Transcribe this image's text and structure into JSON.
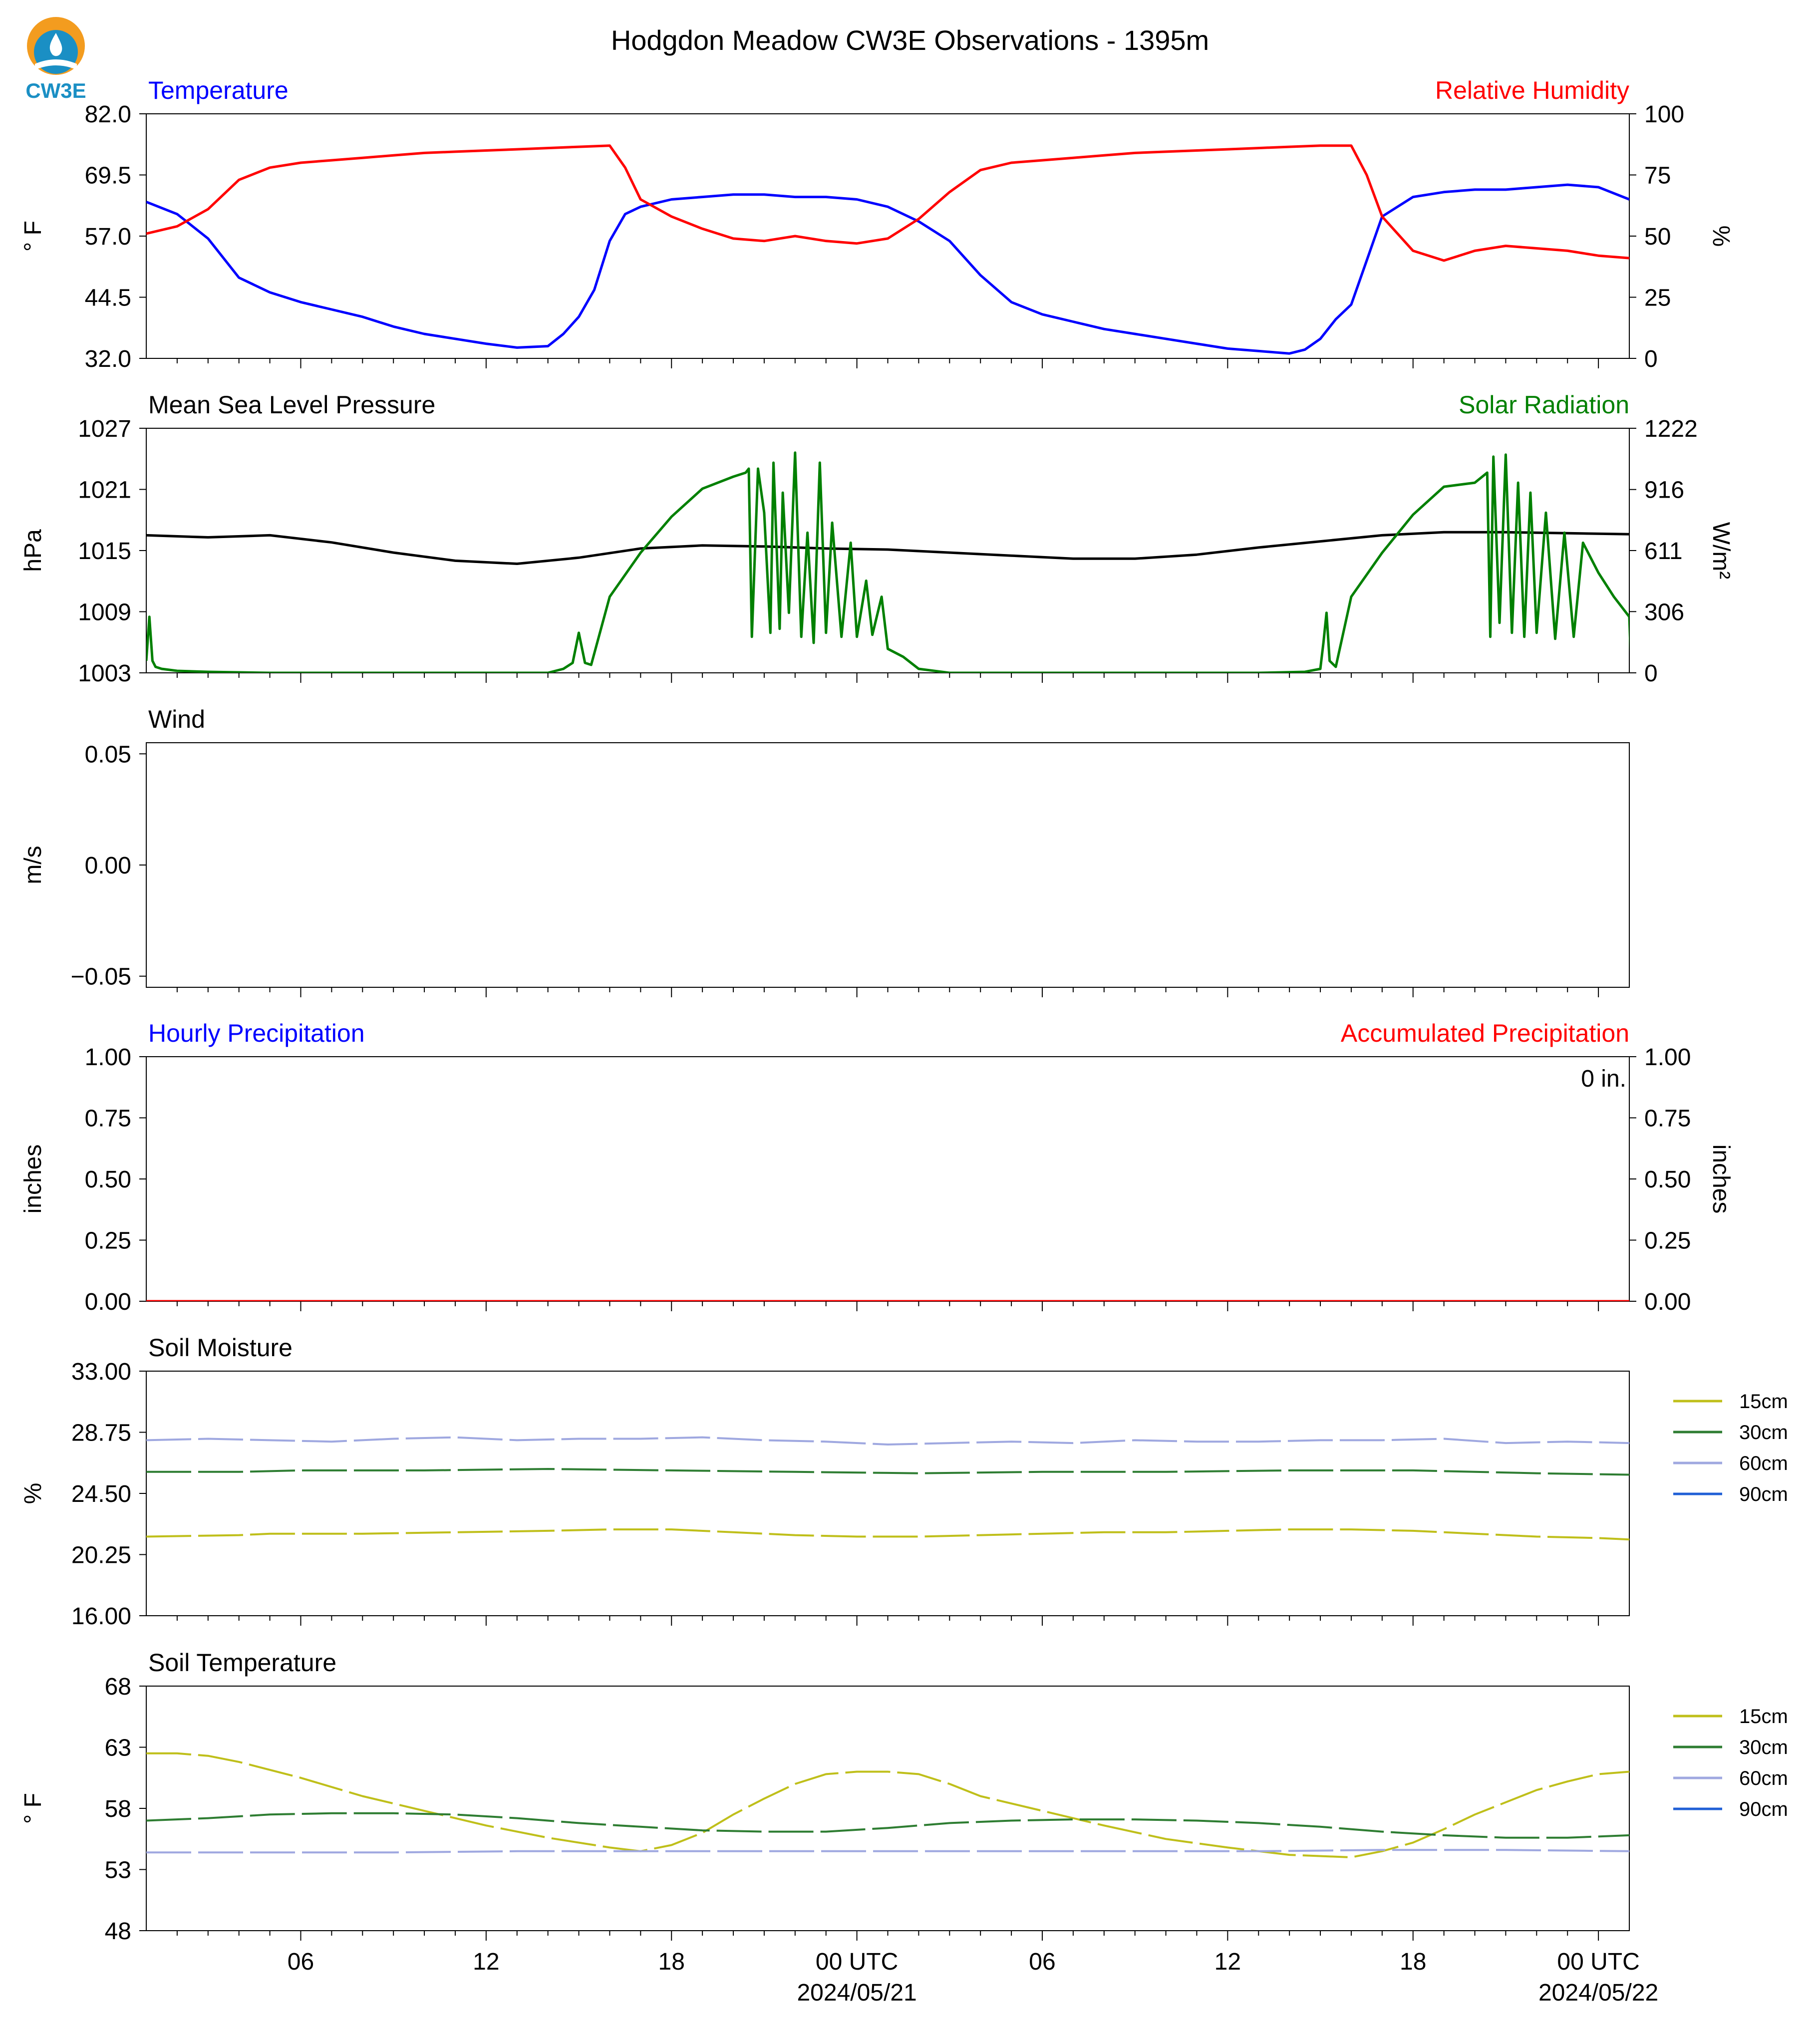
{
  "title": "Hodgdon Meadow CW3E Observations - 1395m",
  "logo": {
    "text": "CW3E",
    "colors": {
      "sun": "#f39c1f",
      "water": "#1a8fc4",
      "text": "#1a8fc4"
    }
  },
  "colors": {
    "temperature": "#0000ff",
    "humidity": "#ff0000",
    "pressure": "#000000",
    "solar": "#008000",
    "soil_15cm": "#bfbf1a",
    "soil_30cm": "#2e7d32",
    "soil_60cm": "#9fa8e0",
    "soil_90cm": "#1f5fd6"
  },
  "x_axis": {
    "ticks": [
      "06",
      "12",
      "18",
      "00 UTC",
      "06",
      "12",
      "18",
      "00 UTC"
    ],
    "tick_hours": [
      6,
      12,
      18,
      24,
      30,
      36,
      42,
      48
    ],
    "dates": [
      {
        "hour": 24,
        "label": "2024/05/21"
      },
      {
        "hour": 48,
        "label": "2024/05/22"
      }
    ],
    "range_hours": [
      1,
      49
    ]
  },
  "chart_data": [
    {
      "id": "temp_rh",
      "type": "line",
      "title_left": "Temperature",
      "title_right": "Relative Humidity",
      "ylabel_left": "° F",
      "ylabel_right": "%",
      "ylim_left": [
        32.0,
        82.0
      ],
      "ylim_right": [
        0,
        100
      ],
      "yticks_left": [
        "32.0",
        "44.5",
        "57.0",
        "69.5",
        "82.0"
      ],
      "yticks_right": [
        "0",
        "25",
        "50",
        "75",
        "100"
      ],
      "series": [
        {
          "name": "Temperature",
          "axis": "left",
          "color": "temperature",
          "x": [
            1,
            2,
            3,
            4,
            5,
            6,
            7,
            8,
            9,
            10,
            11,
            12,
            13,
            14,
            14.5,
            15,
            15.5,
            16,
            16.5,
            17,
            18,
            19,
            20,
            21,
            22,
            23,
            24,
            25,
            26,
            27,
            28,
            29,
            30,
            31,
            32,
            33,
            34,
            35,
            36,
            37,
            38,
            38.5,
            39,
            39.5,
            40,
            40.5,
            41,
            42,
            43,
            44,
            45,
            46,
            47,
            48,
            49
          ],
          "y": [
            64.0,
            61.5,
            56.5,
            48.5,
            45.5,
            43.5,
            42.0,
            40.5,
            38.5,
            37.0,
            36.0,
            35.0,
            34.2,
            34.5,
            37.0,
            40.5,
            46.0,
            56.0,
            61.5,
            63.0,
            64.5,
            65.0,
            65.5,
            65.5,
            65.0,
            65.0,
            64.5,
            63.0,
            60.0,
            56.0,
            49.0,
            43.5,
            41.0,
            39.5,
            38.0,
            37.0,
            36.0,
            35.0,
            34.0,
            33.5,
            33.0,
            33.8,
            36.0,
            40.0,
            43.0,
            52.0,
            61.0,
            65.0,
            66.0,
            66.5,
            66.5,
            67.0,
            67.5,
            67.0,
            64.5
          ]
        },
        {
          "name": "Relative Humidity",
          "axis": "right",
          "color": "humidity",
          "x": [
            1,
            2,
            3,
            4,
            5,
            6,
            7,
            8,
            9,
            10,
            11,
            12,
            13,
            14,
            15,
            16,
            16.5,
            17,
            18,
            19,
            20,
            21,
            22,
            23,
            24,
            25,
            26,
            27,
            28,
            29,
            30,
            31,
            32,
            33,
            34,
            35,
            36,
            37,
            38,
            39,
            40,
            40.5,
            41,
            42,
            43,
            44,
            45,
            46,
            47,
            48,
            49
          ],
          "y": [
            51,
            54,
            61,
            73,
            78,
            80,
            81,
            82,
            83,
            84,
            84.5,
            85,
            85.5,
            86,
            86.5,
            87,
            78,
            65,
            58,
            53,
            49,
            48,
            50,
            48,
            47,
            49,
            57,
            68,
            77,
            80,
            81,
            82,
            83,
            84,
            84.5,
            85,
            85.5,
            86,
            86.5,
            87,
            87,
            75,
            58,
            44,
            40,
            44,
            46,
            45,
            44,
            42,
            41
          ]
        }
      ]
    },
    {
      "id": "pressure_solar",
      "type": "line",
      "title_left": "Mean Sea Level Pressure",
      "title_right": "Solar Radiation",
      "ylabel_left": "hPa",
      "ylabel_right": "W/m²",
      "ylim_left": [
        1003,
        1027
      ],
      "ylim_right": [
        0,
        1222
      ],
      "yticks_left": [
        "1003",
        "1009",
        "1015",
        "1021",
        "1027"
      ],
      "yticks_right": [
        "0",
        "306",
        "611",
        "916",
        "1222"
      ],
      "series": [
        {
          "name": "Mean Sea Level Pressure",
          "axis": "left",
          "color": "pressure",
          "x": [
            1,
            3,
            5,
            7,
            9,
            11,
            13,
            15,
            17,
            19,
            21,
            23,
            25,
            27,
            29,
            31,
            33,
            35,
            37,
            39,
            41,
            43,
            45,
            47,
            49
          ],
          "y": [
            1016.5,
            1016.3,
            1016.5,
            1015.8,
            1014.8,
            1014.0,
            1013.7,
            1014.3,
            1015.2,
            1015.5,
            1015.4,
            1015.2,
            1015.1,
            1014.8,
            1014.5,
            1014.2,
            1014.2,
            1014.6,
            1015.3,
            1015.9,
            1016.5,
            1016.8,
            1016.8,
            1016.7,
            1016.6
          ]
        },
        {
          "name": "Solar Radiation",
          "axis": "right",
          "color": "solar",
          "x": [
            1,
            1.1,
            1.2,
            1.3,
            1.5,
            2,
            3,
            5,
            10,
            14,
            14.5,
            14.8,
            15,
            15.2,
            15.4,
            16,
            17,
            18,
            19,
            20,
            20.4,
            20.5,
            20.6,
            20.8,
            21,
            21.2,
            21.3,
            21.5,
            21.6,
            21.8,
            22,
            22.2,
            22.4,
            22.6,
            22.8,
            23,
            23.2,
            23.5,
            23.8,
            24,
            24.3,
            24.5,
            24.8,
            25,
            25.5,
            26,
            27,
            28,
            30,
            33,
            37,
            38.5,
            39,
            39.1,
            39.2,
            39.3,
            39.5,
            40,
            41,
            42,
            43,
            44,
            44.4,
            44.5,
            44.6,
            44.8,
            45,
            45.2,
            45.4,
            45.6,
            45.8,
            46,
            46.3,
            46.6,
            46.9,
            47.2,
            47.5,
            48,
            48.5,
            49,
            49.05
          ],
          "y": [
            60,
            280,
            60,
            30,
            20,
            10,
            5,
            0,
            0,
            0,
            20,
            50,
            200,
            50,
            40,
            380,
            600,
            780,
            920,
            980,
            1000,
            1020,
            180,
            1020,
            800,
            200,
            1050,
            220,
            900,
            300,
            1100,
            180,
            700,
            150,
            1050,
            200,
            750,
            180,
            650,
            180,
            460,
            190,
            380,
            120,
            80,
            20,
            0,
            0,
            0,
            0,
            0,
            5,
            20,
            150,
            300,
            60,
            30,
            380,
            600,
            790,
            930,
            950,
            1000,
            180,
            1080,
            250,
            1090,
            200,
            950,
            180,
            900,
            200,
            800,
            170,
            700,
            180,
            650,
            500,
            380,
            280,
            60
          ]
        }
      ]
    },
    {
      "id": "wind",
      "type": "line",
      "title_left": "Wind",
      "title_right": "",
      "ylabel_left": "m/s",
      "ylabel_right": "",
      "ylim_left": [
        -0.055,
        0.055
      ],
      "yticks_left": [
        "−0.05",
        "0.00",
        "0.05"
      ],
      "yticks_left_values": [
        -0.05,
        0.0,
        0.05
      ],
      "series": []
    },
    {
      "id": "precip",
      "type": "bar",
      "title_left": "Hourly Precipitation",
      "title_right": "Accumulated Precipitation",
      "accumulated_label": "0 in.",
      "ylabel_left": "inches",
      "ylabel_right": "inches",
      "ylim_left": [
        0,
        1
      ],
      "ylim_right": [
        0,
        1
      ],
      "yticks_left": [
        "0.00",
        "0.25",
        "0.50",
        "0.75",
        "1.00"
      ],
      "yticks_right": [
        "0.00",
        "0.25",
        "0.50",
        "0.75",
        "1.00"
      ],
      "series": [
        {
          "name": "Accumulated Precipitation",
          "axis": "right",
          "color": "humidity",
          "x": [
            1,
            49
          ],
          "y": [
            0,
            0
          ]
        }
      ]
    },
    {
      "id": "soil_moisture",
      "type": "line",
      "title_left": "Soil Moisture",
      "title_right": "",
      "ylabel_left": "%",
      "ylim_left": [
        16.0,
        33.0
      ],
      "yticks_left": [
        "16.00",
        "20.25",
        "24.50",
        "28.75",
        "33.00"
      ],
      "legend": [
        "15cm",
        "30cm",
        "60cm",
        "90cm"
      ],
      "series": [
        {
          "name": "15cm",
          "color": "soil_15cm",
          "x": [
            1,
            4,
            5,
            8,
            11,
            14,
            16,
            18,
            20,
            22,
            24,
            26,
            28,
            30,
            32,
            34,
            36,
            38,
            40,
            42,
            44,
            46,
            48,
            49
          ],
          "y": [
            21.5,
            21.6,
            21.7,
            21.7,
            21.8,
            21.9,
            22.0,
            22.0,
            21.8,
            21.6,
            21.5,
            21.5,
            21.6,
            21.7,
            21.8,
            21.8,
            21.9,
            22.0,
            22.0,
            21.9,
            21.7,
            21.5,
            21.4,
            21.3
          ]
        },
        {
          "name": "30cm",
          "color": "soil_30cm",
          "x": [
            1,
            4,
            6,
            10,
            14,
            18,
            22,
            26,
            30,
            34,
            38,
            42,
            46,
            49
          ],
          "y": [
            26.0,
            26.0,
            26.1,
            26.1,
            26.2,
            26.1,
            26.0,
            25.9,
            26.0,
            26.0,
            26.1,
            26.1,
            25.9,
            25.8
          ]
        },
        {
          "name": "60cm",
          "color": "soil_60cm",
          "x": [
            1,
            3,
            5,
            7,
            9,
            11,
            13,
            15,
            17,
            19,
            21,
            23,
            25,
            27,
            29,
            31,
            33,
            35,
            37,
            39,
            41,
            43,
            45,
            47,
            49
          ],
          "y": [
            28.2,
            28.3,
            28.2,
            28.1,
            28.3,
            28.4,
            28.2,
            28.3,
            28.3,
            28.4,
            28.2,
            28.1,
            27.9,
            28.0,
            28.1,
            28.0,
            28.2,
            28.1,
            28.1,
            28.2,
            28.2,
            28.3,
            28.0,
            28.1,
            28.0
          ]
        },
        {
          "name": "90cm",
          "color": "soil_90cm",
          "x": [],
          "y": []
        }
      ]
    },
    {
      "id": "soil_temperature",
      "type": "line",
      "title_left": "Soil Temperature",
      "title_right": "",
      "ylabel_left": "° F",
      "ylim_left": [
        48,
        68
      ],
      "yticks_left": [
        "48",
        "53",
        "58",
        "63",
        "68"
      ],
      "legend": [
        "15cm",
        "30cm",
        "60cm",
        "90cm"
      ],
      "series": [
        {
          "name": "15cm",
          "color": "soil_15cm",
          "x": [
            1,
            2,
            3,
            4,
            6,
            8,
            10,
            12,
            14,
            16,
            17,
            18,
            19,
            20,
            21,
            22,
            23,
            24,
            25,
            26,
            27,
            28,
            30,
            32,
            34,
            36,
            38,
            40,
            41,
            42,
            43,
            44,
            45,
            46,
            47,
            48,
            49
          ],
          "y": [
            62.5,
            62.5,
            62.3,
            61.8,
            60.5,
            59.0,
            57.8,
            56.6,
            55.6,
            54.8,
            54.5,
            55.0,
            56.0,
            57.5,
            58.8,
            60.0,
            60.8,
            61.0,
            61.0,
            60.8,
            60.0,
            59.0,
            57.8,
            56.6,
            55.5,
            54.8,
            54.2,
            54.0,
            54.5,
            55.2,
            56.3,
            57.5,
            58.5,
            59.5,
            60.2,
            60.8,
            61.0
          ]
        },
        {
          "name": "30cm",
          "color": "soil_30cm",
          "x": [
            1,
            3,
            5,
            7,
            9,
            11,
            13,
            15,
            17,
            19,
            21,
            23,
            25,
            27,
            29,
            31,
            33,
            35,
            37,
            39,
            41,
            43,
            45,
            47,
            49
          ],
          "y": [
            57.0,
            57.2,
            57.5,
            57.6,
            57.6,
            57.5,
            57.2,
            56.8,
            56.5,
            56.2,
            56.1,
            56.1,
            56.4,
            56.8,
            57.0,
            57.1,
            57.1,
            57.0,
            56.8,
            56.5,
            56.1,
            55.8,
            55.6,
            55.6,
            55.8
          ]
        },
        {
          "name": "60cm",
          "color": "soil_60cm",
          "x": [
            1,
            5,
            9,
            13,
            17,
            21,
            25,
            29,
            33,
            37,
            41,
            45,
            49
          ],
          "y": [
            54.4,
            54.4,
            54.4,
            54.5,
            54.5,
            54.5,
            54.5,
            54.5,
            54.5,
            54.5,
            54.6,
            54.6,
            54.5
          ]
        },
        {
          "name": "90cm",
          "color": "soil_90cm",
          "x": [],
          "y": []
        }
      ]
    }
  ]
}
